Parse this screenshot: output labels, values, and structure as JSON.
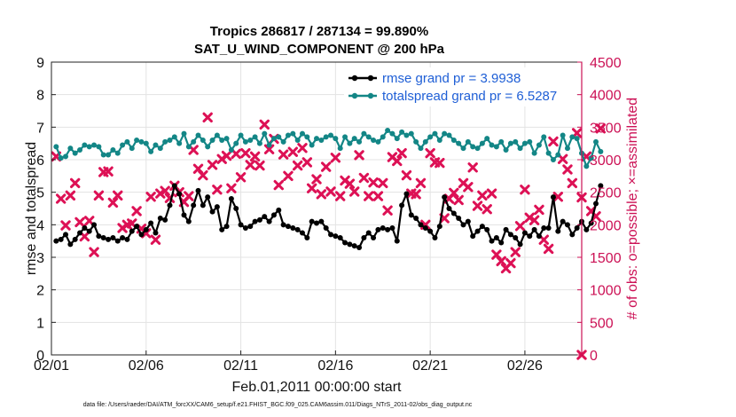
{
  "chart_data": {
    "type": "line",
    "title_line1": "Tropics 286817 / 287134 = 99.890%",
    "title_line2": "SAT_U_WIND_COMPONENT @ 200 hPa",
    "xlabel": "Feb.01,2011 00:00:00 start",
    "ylabel_left": "rmse and totalspread",
    "ylabel_right": "# of obs: o=possible; ×=assimilated",
    "footer": "data file: /Users/raeder/DAI/ATM_forcXX/CAM6_setup/f.e21.FHIST_BGC.f09_025.CAM6assim.011/Diags_NTrS_2011-02/obs_diag_output.nc",
    "xlim": [
      0,
      28
    ],
    "ylim_left": [
      0,
      9
    ],
    "ylim_right": [
      0,
      4500
    ],
    "x_tick_values": [
      0,
      5,
      10,
      15,
      20,
      25
    ],
    "x_tick_labels": [
      "02/01",
      "02/06",
      "02/11",
      "02/16",
      "02/21",
      "02/26"
    ],
    "y_left_ticks": [
      0,
      1,
      2,
      3,
      4,
      5,
      6,
      7,
      8,
      9
    ],
    "y_right_ticks": [
      0,
      500,
      1000,
      1500,
      2000,
      2500,
      3000,
      3500,
      4000,
      4500
    ],
    "grid": true,
    "legend_position": "top-right",
    "colors": {
      "rmse": "#000000",
      "totalspread": "#138686",
      "obs": "#dd1155",
      "right_axis": "#cc1155",
      "legend_text": "#1f5fd6"
    },
    "series": [
      {
        "name": "rmse grand pr = 3.9938",
        "axis": "left",
        "x_start": 0.25,
        "x_step": 0.25,
        "values": [
          3.5,
          3.55,
          3.7,
          3.4,
          3.55,
          3.75,
          3.9,
          3.8,
          4.0,
          3.65,
          3.6,
          3.55,
          3.6,
          3.5,
          3.6,
          3.55,
          3.8,
          3.95,
          3.7,
          3.85,
          4.05,
          3.75,
          4.2,
          4.15,
          4.6,
          5.2,
          4.95,
          4.3,
          4.1,
          4.6,
          5.05,
          4.6,
          4.85,
          4.4,
          4.55,
          3.85,
          3.95,
          4.8,
          4.5,
          4.0,
          3.9,
          3.95,
          4.1,
          4.15,
          4.25,
          4.1,
          4.3,
          4.45,
          4.0,
          3.95,
          3.9,
          3.85,
          3.75,
          3.6,
          4.1,
          4.05,
          4.1,
          3.9,
          3.7,
          3.65,
          3.6,
          3.45,
          3.4,
          3.35,
          3.3,
          3.6,
          3.75,
          3.6,
          3.85,
          3.9,
          3.85,
          3.9,
          3.5,
          4.6,
          4.95,
          4.3,
          4.2,
          4.0,
          3.9,
          3.8,
          3.6,
          3.95,
          4.85,
          4.5,
          4.35,
          4.2,
          4.0,
          4.1,
          3.65,
          3.8,
          3.95,
          3.85,
          3.5,
          3.6,
          3.45,
          3.85,
          3.7,
          3.6,
          3.4,
          3.75,
          3.65,
          3.85,
          3.65,
          3.9,
          3.9,
          4.85,
          3.8,
          4.1,
          4.0,
          3.7,
          3.9,
          4.1,
          3.85,
          4.05,
          4.65,
          5.2
        ]
      },
      {
        "name": "totalspread grand pr = 6.5287",
        "axis": "left",
        "x_start": 0.25,
        "x_step": 0.25,
        "values": [
          6.4,
          6.05,
          6.1,
          6.35,
          6.2,
          6.3,
          6.45,
          6.4,
          6.45,
          6.4,
          6.15,
          6.15,
          6.3,
          6.2,
          6.45,
          6.55,
          6.35,
          6.6,
          6.55,
          6.5,
          6.25,
          6.45,
          6.35,
          6.55,
          6.6,
          6.7,
          6.5,
          6.8,
          6.4,
          6.55,
          6.75,
          6.6,
          6.4,
          6.6,
          6.75,
          6.6,
          6.65,
          6.3,
          6.5,
          6.75,
          6.55,
          6.6,
          6.7,
          6.5,
          6.8,
          6.45,
          6.65,
          6.7,
          6.55,
          6.75,
          6.8,
          6.6,
          6.8,
          6.7,
          6.45,
          6.65,
          6.6,
          6.7,
          6.75,
          6.65,
          6.35,
          6.7,
          6.5,
          6.65,
          6.55,
          6.8,
          6.7,
          6.6,
          6.55,
          6.7,
          6.9,
          6.8,
          6.65,
          6.85,
          6.75,
          6.8,
          6.55,
          6.35,
          6.55,
          6.7,
          6.8,
          6.6,
          6.8,
          6.75,
          6.6,
          6.5,
          6.35,
          6.55,
          6.4,
          6.35,
          6.5,
          6.65,
          6.45,
          6.4,
          6.55,
          6.3,
          6.5,
          6.55,
          6.35,
          6.5,
          6.55,
          6.2,
          6.45,
          6.7,
          6.2,
          6.0,
          6.15,
          6.75,
          6.35,
          6.7,
          6.65,
          6.2,
          5.8,
          6.05,
          6.55,
          6.25
        ]
      },
      {
        "name": "assimilated obs count",
        "axis": "right",
        "marker": "x",
        "x_start": 0.25,
        "x_step": 0.25,
        "values": [
          3050,
          2400,
          1990,
          2450,
          2640,
          2040,
          1820,
          2060,
          1580,
          2450,
          2810,
          2820,
          2340,
          2450,
          1950,
          2000,
          2020,
          2210,
          1940,
          1870,
          2430,
          1770,
          2480,
          2520,
          2410,
          2600,
          2500,
          2350,
          2440,
          3150,
          2860,
          2760,
          3650,
          2920,
          2540,
          3010,
          3060,
          2560,
          3090,
          2730,
          3100,
          2920,
          3050,
          2910,
          3540,
          3160,
          3320,
          2610,
          3080,
          2750,
          3120,
          2910,
          3180,
          2960,
          2560,
          2700,
          2470,
          2890,
          2510,
          3030,
          2440,
          2680,
          2630,
          2510,
          3070,
          2720,
          2440,
          2650,
          2440,
          2640,
          2220,
          3040,
          2980,
          3100,
          2760,
          2480,
          2470,
          2640,
          2000,
          3100,
          2960,
          2950,
          2100,
          2400,
          2490,
          2380,
          2640,
          2580,
          2880,
          2290,
          2450,
          2240,
          2480,
          1540,
          1440,
          1330,
          1410,
          1580,
          1980,
          2540,
          2110,
          2070,
          2230,
          1770,
          1630,
          3280,
          2430,
          3010,
          2850,
          2640,
          3410,
          2420,
          3050,
          2210,
          2130,
          3480
        ]
      }
    ],
    "stray_points_right": [
      {
        "x": 28,
        "y": 0
      }
    ],
    "legend": [
      {
        "label": "rmse grand pr = 3.9938",
        "series": "rmse"
      },
      {
        "label": "totalspread grand pr = 6.5287",
        "series": "totalspread"
      }
    ]
  }
}
